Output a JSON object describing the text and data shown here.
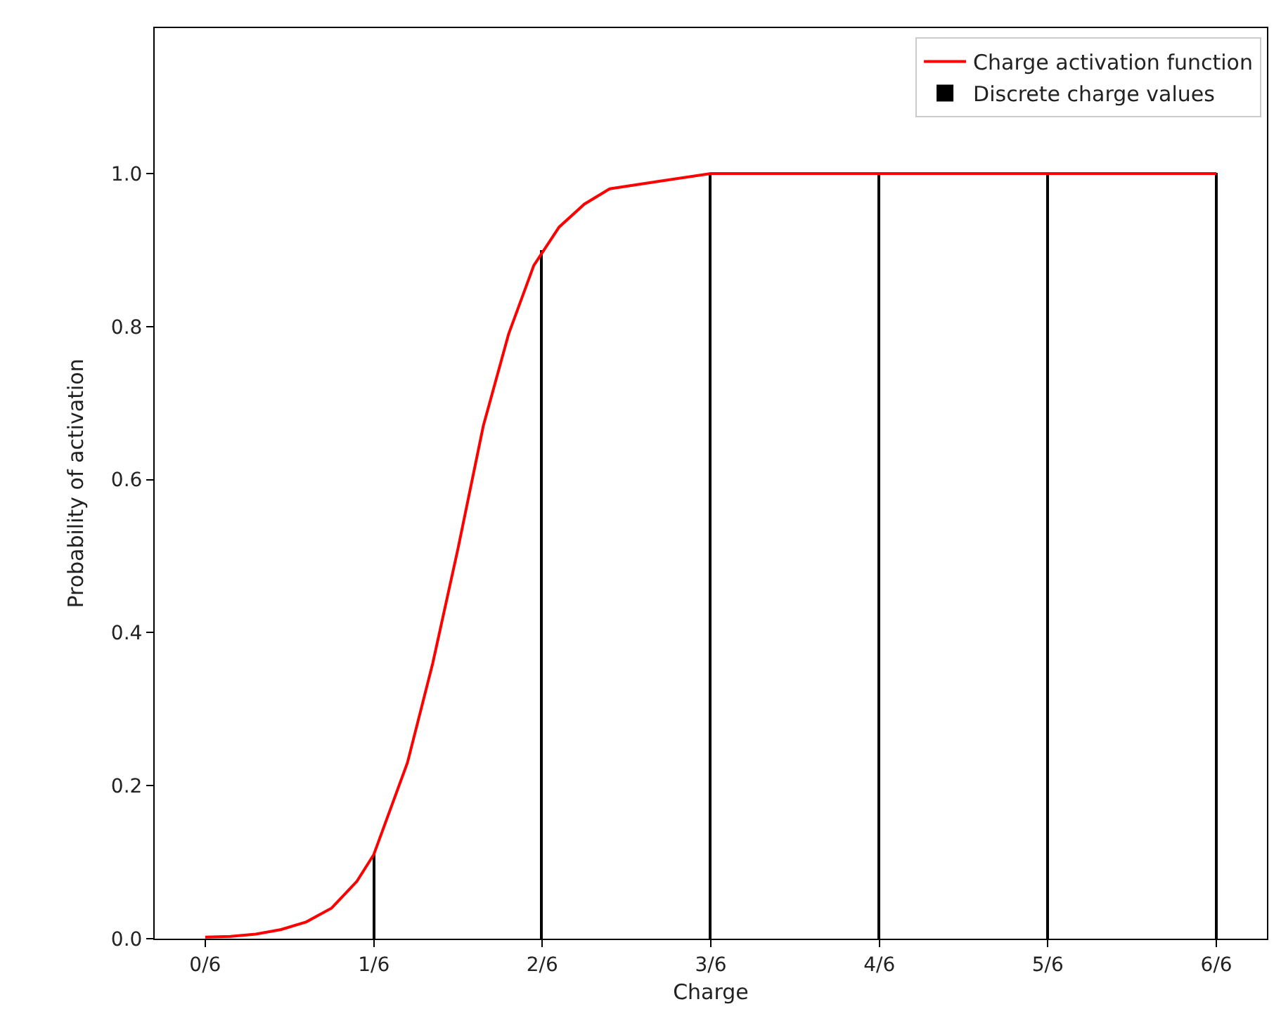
{
  "chart_data": {
    "type": "line",
    "xlabel": "Charge",
    "ylabel": "Probability of activation",
    "series": [
      {
        "name": "Charge activation function",
        "color": "#ff0000",
        "x": [
          0,
          0.025,
          0.05,
          0.075,
          0.1,
          0.125,
          0.15,
          0.1667,
          0.2,
          0.225,
          0.25,
          0.275,
          0.3,
          0.325,
          0.35,
          0.375,
          0.4,
          0.45,
          0.5,
          0.6,
          0.7,
          0.8,
          0.9,
          1.0
        ],
        "values": [
          0.002,
          0.003,
          0.006,
          0.012,
          0.022,
          0.04,
          0.075,
          0.11,
          0.23,
          0.36,
          0.51,
          0.67,
          0.79,
          0.88,
          0.93,
          0.96,
          0.98,
          0.99,
          1.0,
          1.0,
          1.0,
          1.0,
          1.0,
          1.0
        ]
      },
      {
        "name": "Discrete charge values",
        "type": "bar",
        "color": "#000000",
        "x": [
          0,
          0.1667,
          0.3333,
          0.5,
          0.6667,
          0.8333,
          1.0
        ],
        "values": [
          0,
          0.11,
          0.9,
          1.0,
          1.0,
          1.0,
          1.0
        ]
      }
    ],
    "xlim": [
      -0.05,
      1.05
    ],
    "xticks": [
      {
        "value": 0,
        "label": "0/6"
      },
      {
        "value": 0.1667,
        "label": "1/6"
      },
      {
        "value": 0.3333,
        "label": "2/6"
      },
      {
        "value": 0.5,
        "label": "3/6"
      },
      {
        "value": 0.6667,
        "label": "4/6"
      },
      {
        "value": 0.8333,
        "label": "5/6"
      },
      {
        "value": 1.0,
        "label": "6/6"
      }
    ],
    "ylim": [
      0,
      1.19
    ],
    "yticks": [
      {
        "value": 0,
        "label": "0.0"
      },
      {
        "value": 0.2,
        "label": "0.2"
      },
      {
        "value": 0.4,
        "label": "0.4"
      },
      {
        "value": 0.6,
        "label": "0.6"
      },
      {
        "value": 0.8,
        "label": "0.8"
      },
      {
        "value": 1.0,
        "label": "1.0"
      }
    ],
    "legend": "top right"
  }
}
